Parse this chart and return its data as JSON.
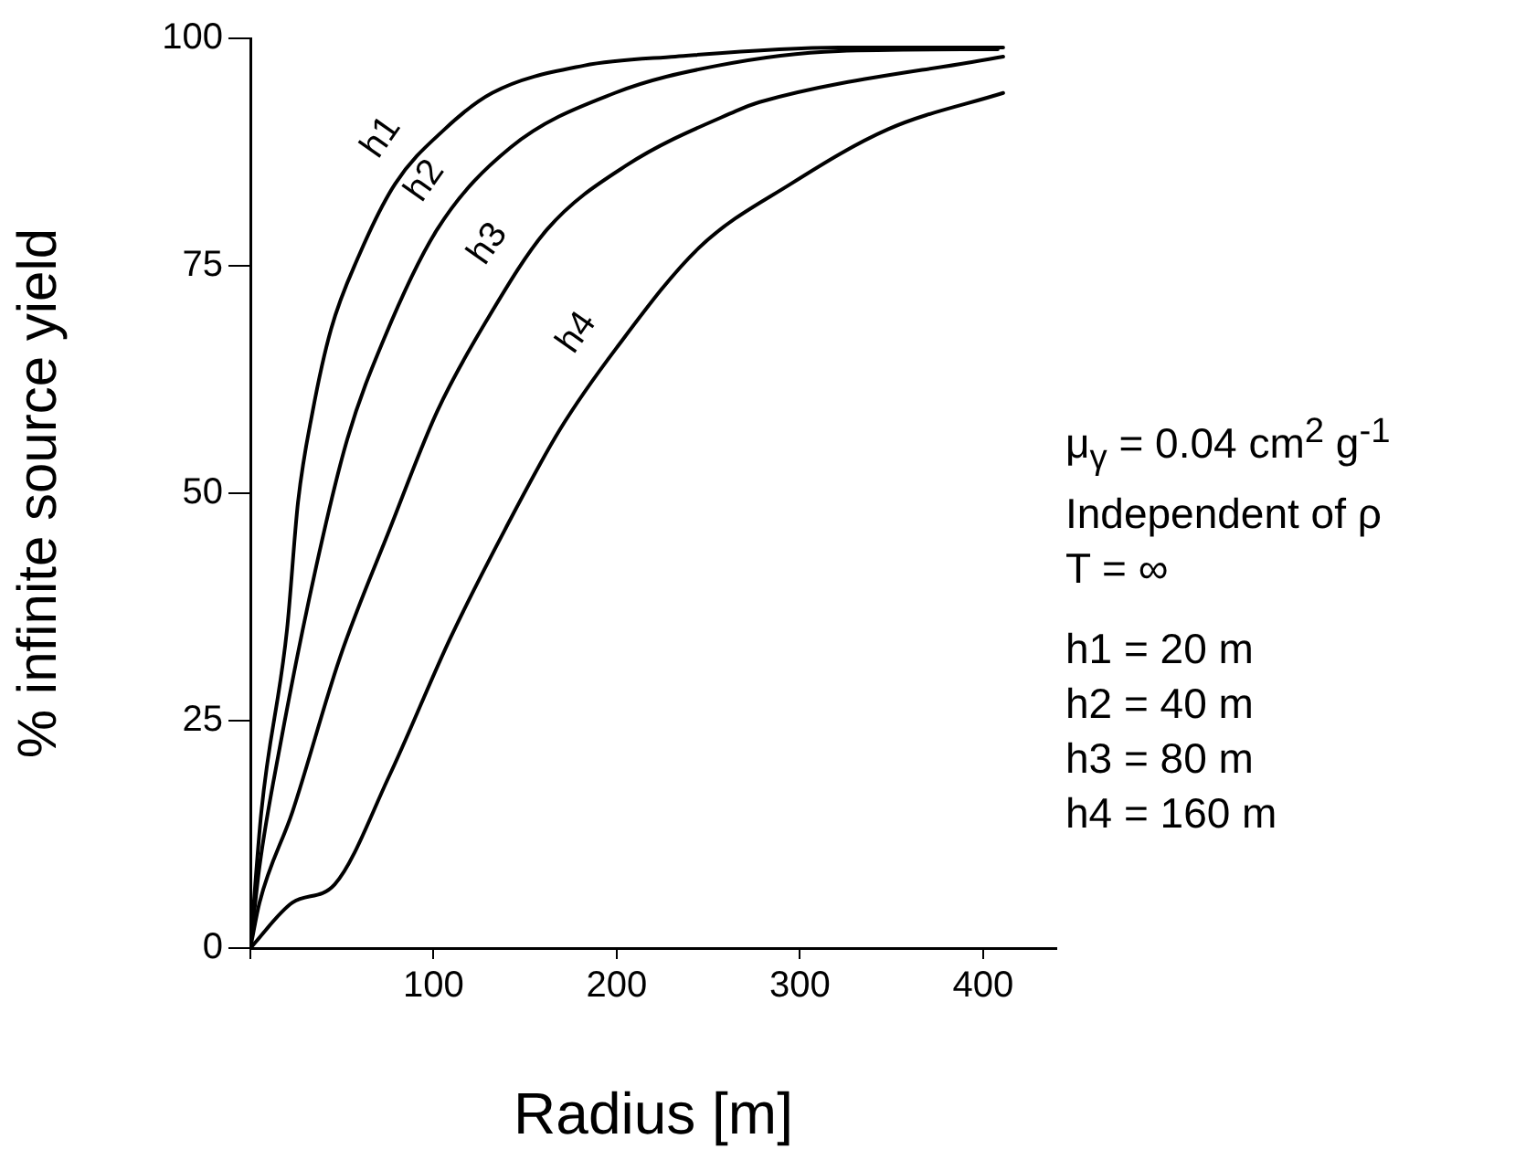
{
  "chart_data": {
    "type": "line",
    "xlabel": "Radius [m]",
    "ylabel": "% infinite source yield",
    "xlim": [
      0,
      440
    ],
    "xticks": [
      {
        "value": 0,
        "label": null
      },
      100,
      200,
      300,
      400
    ],
    "ylim": [
      0,
      100
    ],
    "yticks": [
      0,
      25,
      50,
      75,
      100
    ],
    "grid": false,
    "legend": false,
    "marker": "none",
    "line_style": "solid",
    "series": [
      {
        "name": "h1",
        "color": "#000000",
        "x": [
          0,
          6,
          20,
          26,
          34,
          44,
          59,
          79,
          106,
          132,
          182,
          232,
          321,
          411
        ],
        "values": [
          0,
          15,
          35,
          49,
          59,
          68,
          76,
          84,
          90,
          94,
          97,
          98,
          99,
          99
        ]
      },
      {
        "name": "h2",
        "color": "#000000",
        "x": [
          0,
          5,
          16,
          36,
          53,
          73,
          102,
          142,
          199,
          255,
          321,
          408
        ],
        "values": [
          0,
          9,
          22,
          42,
          56,
          67,
          79,
          88,
          94,
          97,
          98.6,
          98.8
        ]
      },
      {
        "name": "h3",
        "color": "#000000",
        "x": [
          0,
          5,
          23,
          49,
          76,
          102,
          129,
          162,
          205,
          265,
          278,
          411
        ],
        "values": [
          0,
          5,
          15,
          32,
          46,
          59,
          69,
          79,
          86,
          92,
          93,
          98
        ]
      },
      {
        "name": "h4",
        "color": "#000000",
        "x": [
          0,
          23,
          46,
          76,
          109,
          139,
          169,
          200,
          245,
          295,
          348,
          411
        ],
        "values": [
          0,
          5,
          7,
          19,
          34,
          46,
          57,
          66,
          77,
          84,
          90,
          94
        ]
      }
    ],
    "annotations": [
      "μ$_{γ}$ = 0.04 cm$^{2}$ g$^{-1}$",
      "Independent of ρ",
      "T =  ∞",
      "h1 = 20 m",
      "h2 = 40 m",
      "h3 = 80 m",
      "h4 = 160 m"
    ]
  }
}
